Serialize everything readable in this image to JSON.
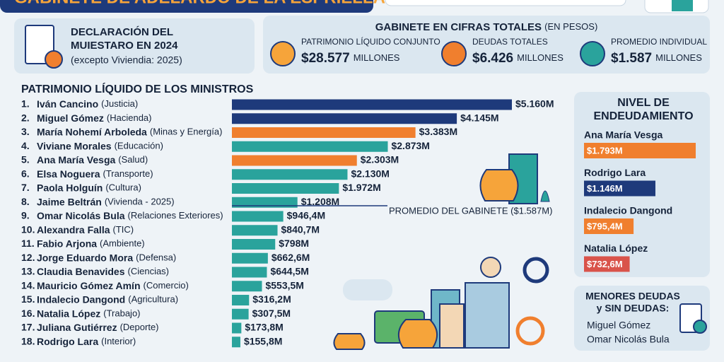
{
  "header": {
    "title": "GABINETE DE ADELARDO DE LA ESPRIELLA"
  },
  "declaration": {
    "title_1": "DECLARACIÓN DEL",
    "title_2": "MUIESTARO EN 2024",
    "note": "(excepto Viviendia: 2025)"
  },
  "totals": {
    "title": "GABINETE EN CIFRAS TOTALES",
    "subtitle": "(EN PESOS)",
    "items": [
      {
        "label": "PATRIMONIO LÍQUIDO CONJUNTO",
        "value": "$28.577",
        "unit": "MILLONES"
      },
      {
        "label": "DEUDAS TOTALES",
        "value": "$6.426",
        "unit": "MILLONES"
      },
      {
        "label": "PROMEDIO INDIVIDUAL",
        "value": "$1.587",
        "unit": "MILLONES"
      }
    ]
  },
  "chart_data": {
    "type": "bar",
    "orientation": "horizontal",
    "title": "PATRIMONIO LÍQUIDO DE LOS MINISTROS",
    "ranks": [
      "1.",
      "2.",
      "3.",
      "4.",
      "5.",
      "6.",
      "7.",
      "8.",
      "9.",
      "10.",
      "11.",
      "12.",
      "13.",
      "14.",
      "15.",
      "16.",
      "17.",
      "18."
    ],
    "categories": [
      "Iván Cancino",
      "Miguel Gómez",
      "María Nohemí Arboleda",
      "Viviane Morales",
      "Ana María Vesga",
      "Elsa Noguera",
      "Paola Holguín",
      "Jaime Beltrán",
      "Omar Nicolás Bula",
      "Alexandra Falla",
      "Fabio Arjona",
      "Jorge Eduardo Mora",
      "Claudia Benavides",
      "Mauricio Gómez Amín",
      "Indalecio Dangond",
      "Natalia López",
      "Juliana Gutiérrez",
      "Rodrigo Lara"
    ],
    "ministries": [
      "(Justicia)",
      "(Hacienda)",
      "(Minas y Energía)",
      "(Educación)",
      "(Salud)",
      "(Transporte)",
      "(Cultura)",
      "(Vivienda - 2025)",
      "(Relaciones Exteriores)",
      "(TIC)",
      "(Ambiente)",
      "(Defensa)",
      "(Ciencias)",
      "(Comercio)",
      "(Agricultura)",
      "(Trabajo)",
      "(Deporte)",
      "(Interior)"
    ],
    "values": [
      5160,
      4145,
      3383,
      2873,
      2303,
      2130,
      1972,
      1208,
      946.4,
      840.7,
      798,
      662.6,
      644.5,
      553.5,
      316.2,
      307.5,
      173.8,
      155.8
    ],
    "value_labels": [
      "$5.160M",
      "$4.145M",
      "$3.383M",
      "$2.873M",
      "$2.303M",
      "$2.130M",
      "$1.972M",
      "$1.208M",
      "$946,4M",
      "$840,7M",
      "$798M",
      "$662,6M",
      "$644,5M",
      "$553,5M",
      "$316,2M",
      "$307,5M",
      "$173,8M",
      "$155,8M"
    ],
    "colors": [
      "#1e3a7b",
      "#1e3a7b",
      "#f07f2e",
      "#2aa39c",
      "#f07f2e",
      "#2aa39c",
      "#2aa39c",
      "#2aa39c",
      "#2aa39c",
      "#2aa39c",
      "#2aa39c",
      "#2aa39c",
      "#2aa39c",
      "#2aa39c",
      "#2aa39c",
      "#2aa39c",
      "#2aa39c",
      "#2aa39c"
    ],
    "annotation": "PROMEDIO DEL GABINETE ($1.587M)"
  },
  "debt": {
    "type": "bar",
    "title_1": "NIVEL DE",
    "title_2": "ENDEUDAMIENTO",
    "categories": [
      "Ana María Vesga",
      "Rodrigo Lara",
      "Indalecio Dangond",
      "Natalia López"
    ],
    "values": [
      1793,
      1146,
      795.4,
      732.6
    ],
    "value_labels": [
      "$1.793M",
      "$1.146M",
      "$795,4M",
      "$732,6M"
    ],
    "colors": [
      "#f07f2e",
      "#1e3a7b",
      "#f07f2e",
      "#d9534a"
    ]
  },
  "minor_debts": {
    "title_1": "MENORES DEUDAS",
    "title_2": "y SIN DEUDAS:",
    "names": [
      "Miguel Gómez",
      "Omar Nicolás Bula"
    ]
  }
}
